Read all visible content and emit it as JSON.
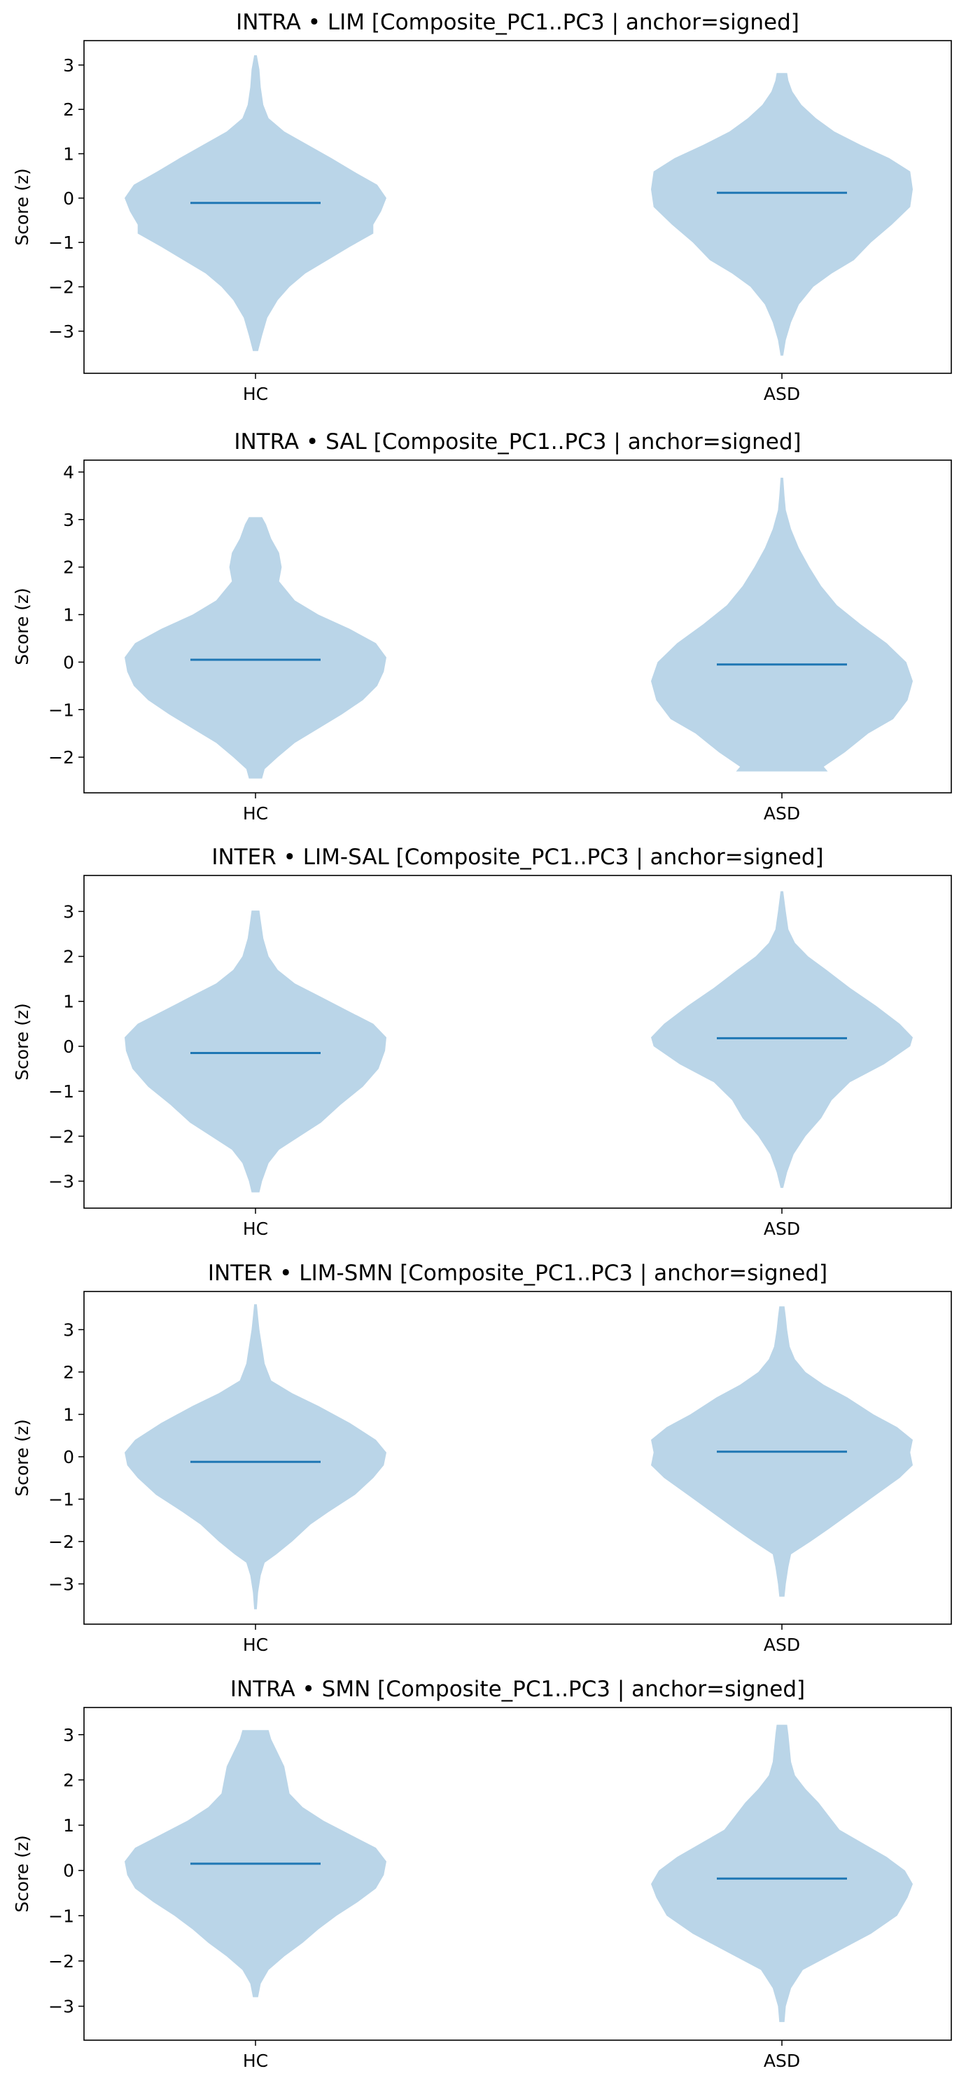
{
  "figure": {
    "background": "#ffffff"
  },
  "style": {
    "violin_fill": "#bad5e8",
    "median_color": "#1f77b4"
  },
  "chart_data": [
    {
      "type": "violin",
      "title": "INTRA • LIM  [Composite_PC1..PC3 | anchor=signed]",
      "ylabel": "Score (z)",
      "ylim": [
        -3.95,
        3.55
      ],
      "yticks": [
        3,
        2,
        1,
        0,
        -1,
        -2,
        -3
      ],
      "categories": [
        "HC",
        "ASD"
      ],
      "violins": [
        {
          "category": "HC",
          "median": -0.11,
          "min": -3.45,
          "max": 3.22,
          "profile": [
            [
              -3.45,
              0.02
            ],
            [
              -3.1,
              0.05
            ],
            [
              -2.7,
              0.09
            ],
            [
              -2.3,
              0.17
            ],
            [
              -2.0,
              0.26
            ],
            [
              -1.7,
              0.38
            ],
            [
              -1.4,
              0.55
            ],
            [
              -1.1,
              0.72
            ],
            [
              -0.8,
              0.9
            ],
            [
              -0.6,
              0.9
            ],
            [
              -0.3,
              0.96
            ],
            [
              0.0,
              1.0
            ],
            [
              0.3,
              0.93
            ],
            [
              0.6,
              0.75
            ],
            [
              0.9,
              0.58
            ],
            [
              1.2,
              0.4
            ],
            [
              1.5,
              0.22
            ],
            [
              1.8,
              0.1
            ],
            [
              2.1,
              0.06
            ],
            [
              2.5,
              0.04
            ],
            [
              2.9,
              0.03
            ],
            [
              3.22,
              0.01
            ]
          ]
        },
        {
          "category": "ASD",
          "median": 0.12,
          "min": -3.55,
          "max": 2.82,
          "profile": [
            [
              -3.55,
              0.01
            ],
            [
              -3.2,
              0.03
            ],
            [
              -2.8,
              0.07
            ],
            [
              -2.4,
              0.13
            ],
            [
              -2.0,
              0.24
            ],
            [
              -1.7,
              0.38
            ],
            [
              -1.4,
              0.55
            ],
            [
              -1.0,
              0.68
            ],
            [
              -0.6,
              0.84
            ],
            [
              -0.2,
              0.98
            ],
            [
              0.2,
              1.0
            ],
            [
              0.6,
              0.98
            ],
            [
              0.9,
              0.82
            ],
            [
              1.2,
              0.6
            ],
            [
              1.5,
              0.4
            ],
            [
              1.8,
              0.26
            ],
            [
              2.1,
              0.15
            ],
            [
              2.4,
              0.08
            ],
            [
              2.65,
              0.05
            ],
            [
              2.82,
              0.04
            ]
          ]
        }
      ]
    },
    {
      "type": "violin",
      "title": "INTRA • SAL  [Composite_PC1..PC3 | anchor=signed]",
      "ylabel": "Score (z)",
      "ylim": [
        -2.75,
        4.25
      ],
      "yticks": [
        4,
        3,
        2,
        1,
        0,
        -1,
        -2
      ],
      "categories": [
        "HC",
        "ASD"
      ],
      "violins": [
        {
          "category": "HC",
          "median": 0.05,
          "min": -2.45,
          "max": 3.05,
          "profile": [
            [
              -2.45,
              0.05
            ],
            [
              -2.25,
              0.07
            ],
            [
              -2.0,
              0.17
            ],
            [
              -1.7,
              0.3
            ],
            [
              -1.4,
              0.48
            ],
            [
              -1.1,
              0.66
            ],
            [
              -0.8,
              0.82
            ],
            [
              -0.5,
              0.93
            ],
            [
              -0.2,
              0.98
            ],
            [
              0.1,
              1.0
            ],
            [
              0.4,
              0.92
            ],
            [
              0.7,
              0.72
            ],
            [
              1.0,
              0.48
            ],
            [
              1.3,
              0.3
            ],
            [
              1.7,
              0.18
            ],
            [
              2.0,
              0.2
            ],
            [
              2.3,
              0.18
            ],
            [
              2.6,
              0.12
            ],
            [
              2.9,
              0.08
            ],
            [
              3.05,
              0.05
            ]
          ]
        },
        {
          "category": "ASD",
          "median": -0.05,
          "min": -2.3,
          "max": 3.88,
          "profile": [
            [
              -2.3,
              0.35
            ],
            [
              -2.2,
              0.32
            ],
            [
              -1.9,
              0.48
            ],
            [
              -1.5,
              0.66
            ],
            [
              -1.2,
              0.85
            ],
            [
              -0.8,
              0.96
            ],
            [
              -0.4,
              1.0
            ],
            [
              0.0,
              0.95
            ],
            [
              0.4,
              0.8
            ],
            [
              0.8,
              0.6
            ],
            [
              1.2,
              0.42
            ],
            [
              1.6,
              0.3
            ],
            [
              2.0,
              0.21
            ],
            [
              2.4,
              0.13
            ],
            [
              2.8,
              0.07
            ],
            [
              3.2,
              0.03
            ],
            [
              3.5,
              0.02
            ],
            [
              3.88,
              0.01
            ]
          ]
        }
      ]
    },
    {
      "type": "violin",
      "title": "INTER • LIM-SAL  [Composite_PC1..PC3 | anchor=signed]",
      "ylabel": "Score (z)",
      "ylim": [
        -3.6,
        3.8
      ],
      "yticks": [
        3,
        2,
        1,
        0,
        -1,
        -2,
        -3
      ],
      "categories": [
        "HC",
        "ASD"
      ],
      "violins": [
        {
          "category": "HC",
          "median": -0.15,
          "min": -3.25,
          "max": 3.02,
          "profile": [
            [
              -3.25,
              0.03
            ],
            [
              -3.0,
              0.05
            ],
            [
              -2.6,
              0.1
            ],
            [
              -2.3,
              0.18
            ],
            [
              -2.0,
              0.34
            ],
            [
              -1.7,
              0.5
            ],
            [
              -1.3,
              0.65
            ],
            [
              -0.9,
              0.82
            ],
            [
              -0.5,
              0.94
            ],
            [
              -0.1,
              0.99
            ],
            [
              0.2,
              1.0
            ],
            [
              0.5,
              0.9
            ],
            [
              0.8,
              0.7
            ],
            [
              1.1,
              0.5
            ],
            [
              1.4,
              0.3
            ],
            [
              1.7,
              0.17
            ],
            [
              2.0,
              0.1
            ],
            [
              2.4,
              0.06
            ],
            [
              2.8,
              0.04
            ],
            [
              3.02,
              0.03
            ]
          ]
        },
        {
          "category": "ASD",
          "median": 0.18,
          "min": -3.15,
          "max": 3.45,
          "profile": [
            [
              -3.15,
              0.01
            ],
            [
              -2.8,
              0.04
            ],
            [
              -2.4,
              0.09
            ],
            [
              -2.0,
              0.18
            ],
            [
              -1.6,
              0.3
            ],
            [
              -1.2,
              0.38
            ],
            [
              -0.8,
              0.52
            ],
            [
              -0.4,
              0.78
            ],
            [
              0.0,
              0.98
            ],
            [
              0.2,
              1.0
            ],
            [
              0.5,
              0.9
            ],
            [
              0.9,
              0.72
            ],
            [
              1.3,
              0.52
            ],
            [
              1.7,
              0.34
            ],
            [
              2.0,
              0.2
            ],
            [
              2.3,
              0.1
            ],
            [
              2.6,
              0.05
            ],
            [
              3.0,
              0.03
            ],
            [
              3.45,
              0.01
            ]
          ]
        }
      ]
    },
    {
      "type": "violin",
      "title": "INTER • LIM-SMN  [Composite_PC1..PC3 | anchor=signed]",
      "ylabel": "Score (z)",
      "ylim": [
        -3.95,
        3.9
      ],
      "yticks": [
        3,
        2,
        1,
        0,
        -1,
        -2,
        -3
      ],
      "categories": [
        "HC",
        "ASD"
      ],
      "violins": [
        {
          "category": "HC",
          "median": -0.12,
          "min": -3.6,
          "max": 3.6,
          "profile": [
            [
              -3.6,
              0.01
            ],
            [
              -3.2,
              0.02
            ],
            [
              -2.8,
              0.04
            ],
            [
              -2.5,
              0.07
            ],
            [
              -2.3,
              0.16
            ],
            [
              -2.0,
              0.28
            ],
            [
              -1.6,
              0.42
            ],
            [
              -1.3,
              0.56
            ],
            [
              -0.9,
              0.76
            ],
            [
              -0.5,
              0.9
            ],
            [
              -0.2,
              0.98
            ],
            [
              0.1,
              1.0
            ],
            [
              0.4,
              0.92
            ],
            [
              0.8,
              0.72
            ],
            [
              1.2,
              0.48
            ],
            [
              1.5,
              0.28
            ],
            [
              1.8,
              0.12
            ],
            [
              2.2,
              0.07
            ],
            [
              2.6,
              0.05
            ],
            [
              3.0,
              0.03
            ],
            [
              3.3,
              0.02
            ],
            [
              3.6,
              0.01
            ]
          ]
        },
        {
          "category": "ASD",
          "median": 0.12,
          "min": -3.3,
          "max": 3.55,
          "profile": [
            [
              -3.3,
              0.02
            ],
            [
              -3.0,
              0.03
            ],
            [
              -2.6,
              0.05
            ],
            [
              -2.3,
              0.07
            ],
            [
              -2.0,
              0.22
            ],
            [
              -1.7,
              0.36
            ],
            [
              -1.3,
              0.54
            ],
            [
              -0.9,
              0.72
            ],
            [
              -0.5,
              0.9
            ],
            [
              -0.2,
              1.0
            ],
            [
              0.1,
              0.98
            ],
            [
              0.4,
              1.0
            ],
            [
              0.7,
              0.88
            ],
            [
              1.0,
              0.7
            ],
            [
              1.4,
              0.5
            ],
            [
              1.7,
              0.32
            ],
            [
              2.0,
              0.18
            ],
            [
              2.3,
              0.1
            ],
            [
              2.6,
              0.06
            ],
            [
              3.0,
              0.04
            ],
            [
              3.3,
              0.03
            ],
            [
              3.55,
              0.02
            ]
          ]
        }
      ]
    },
    {
      "type": "violin",
      "title": "INTRA • SMN  [Composite_PC1..PC3 | anchor=signed]",
      "ylabel": "Score (z)",
      "ylim": [
        -3.75,
        3.6
      ],
      "yticks": [
        3,
        2,
        1,
        0,
        -1,
        -2,
        -3
      ],
      "categories": [
        "HC",
        "ASD"
      ],
      "violins": [
        {
          "category": "HC",
          "median": 0.15,
          "min": -2.8,
          "max": 3.1,
          "profile": [
            [
              -2.8,
              0.02
            ],
            [
              -2.5,
              0.04
            ],
            [
              -2.2,
              0.1
            ],
            [
              -1.9,
              0.22
            ],
            [
              -1.6,
              0.36
            ],
            [
              -1.3,
              0.48
            ],
            [
              -1.0,
              0.62
            ],
            [
              -0.7,
              0.78
            ],
            [
              -0.4,
              0.92
            ],
            [
              -0.1,
              0.98
            ],
            [
              0.2,
              1.0
            ],
            [
              0.5,
              0.92
            ],
            [
              0.8,
              0.72
            ],
            [
              1.1,
              0.52
            ],
            [
              1.4,
              0.36
            ],
            [
              1.7,
              0.26
            ],
            [
              2.0,
              0.24
            ],
            [
              2.3,
              0.22
            ],
            [
              2.6,
              0.17
            ],
            [
              2.9,
              0.12
            ],
            [
              3.1,
              0.1
            ]
          ]
        },
        {
          "category": "ASD",
          "median": -0.18,
          "min": -3.35,
          "max": 3.22,
          "profile": [
            [
              -3.35,
              0.02
            ],
            [
              -3.0,
              0.03
            ],
            [
              -2.6,
              0.07
            ],
            [
              -2.2,
              0.16
            ],
            [
              -1.8,
              0.42
            ],
            [
              -1.4,
              0.68
            ],
            [
              -1.0,
              0.88
            ],
            [
              -0.6,
              0.96
            ],
            [
              -0.3,
              1.0
            ],
            [
              0.0,
              0.94
            ],
            [
              0.3,
              0.8
            ],
            [
              0.6,
              0.62
            ],
            [
              0.9,
              0.44
            ],
            [
              1.2,
              0.36
            ],
            [
              1.5,
              0.28
            ],
            [
              1.8,
              0.18
            ],
            [
              2.1,
              0.1
            ],
            [
              2.4,
              0.07
            ],
            [
              2.7,
              0.06
            ],
            [
              3.0,
              0.05
            ],
            [
              3.22,
              0.04
            ]
          ]
        }
      ]
    }
  ]
}
